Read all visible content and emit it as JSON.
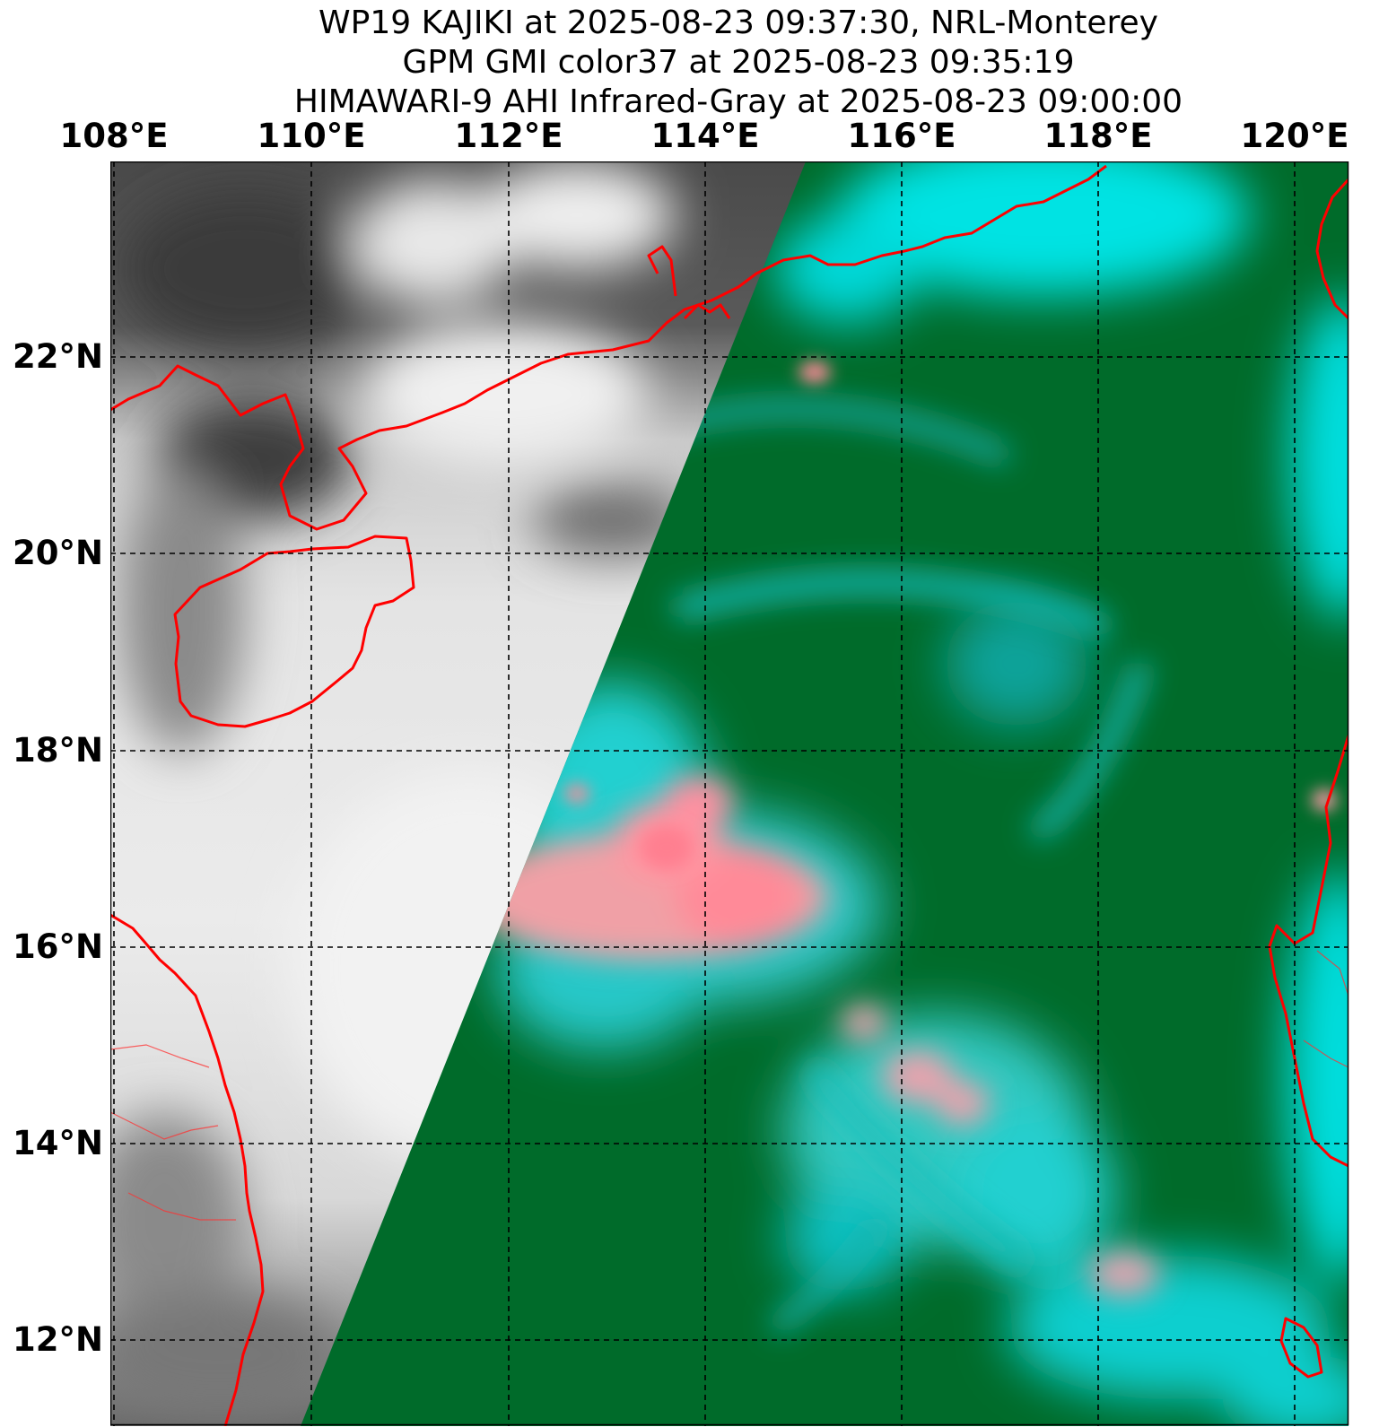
{
  "figure": {
    "title_lines": [
      "WP19 KAJIKI at 2025-08-23 09:37:30, NRL-Monterey",
      "GPM GMI color37 at 2025-08-23 09:35:19",
      "HIMAWARI-9 AHI Infrared-Gray at 2025-08-23 09:00:00"
    ]
  },
  "axes": {
    "lon_ticks": [
      "108°E",
      "110°E",
      "112°E",
      "114°E",
      "116°E",
      "118°E",
      "120°E"
    ],
    "lat_ticks": [
      "22°N",
      "20°N",
      "18°N",
      "16°N",
      "14°N",
      "12°N"
    ],
    "lon_range": [
      108,
      120.6
    ],
    "lat_range": [
      11.4,
      23.8
    ],
    "grid": true,
    "grid_style": "dashed"
  },
  "layers": {
    "infrared": {
      "name": "HIMAWARI-9 AHI Infrared-Gray",
      "colormap": "gray"
    },
    "microwave": {
      "name": "GPM GMI color37",
      "background_color": "#006b2a",
      "convection_color": "#00e3e3",
      "intense_color": "#ff8c9a"
    },
    "coastline_color": "#ff0000"
  }
}
